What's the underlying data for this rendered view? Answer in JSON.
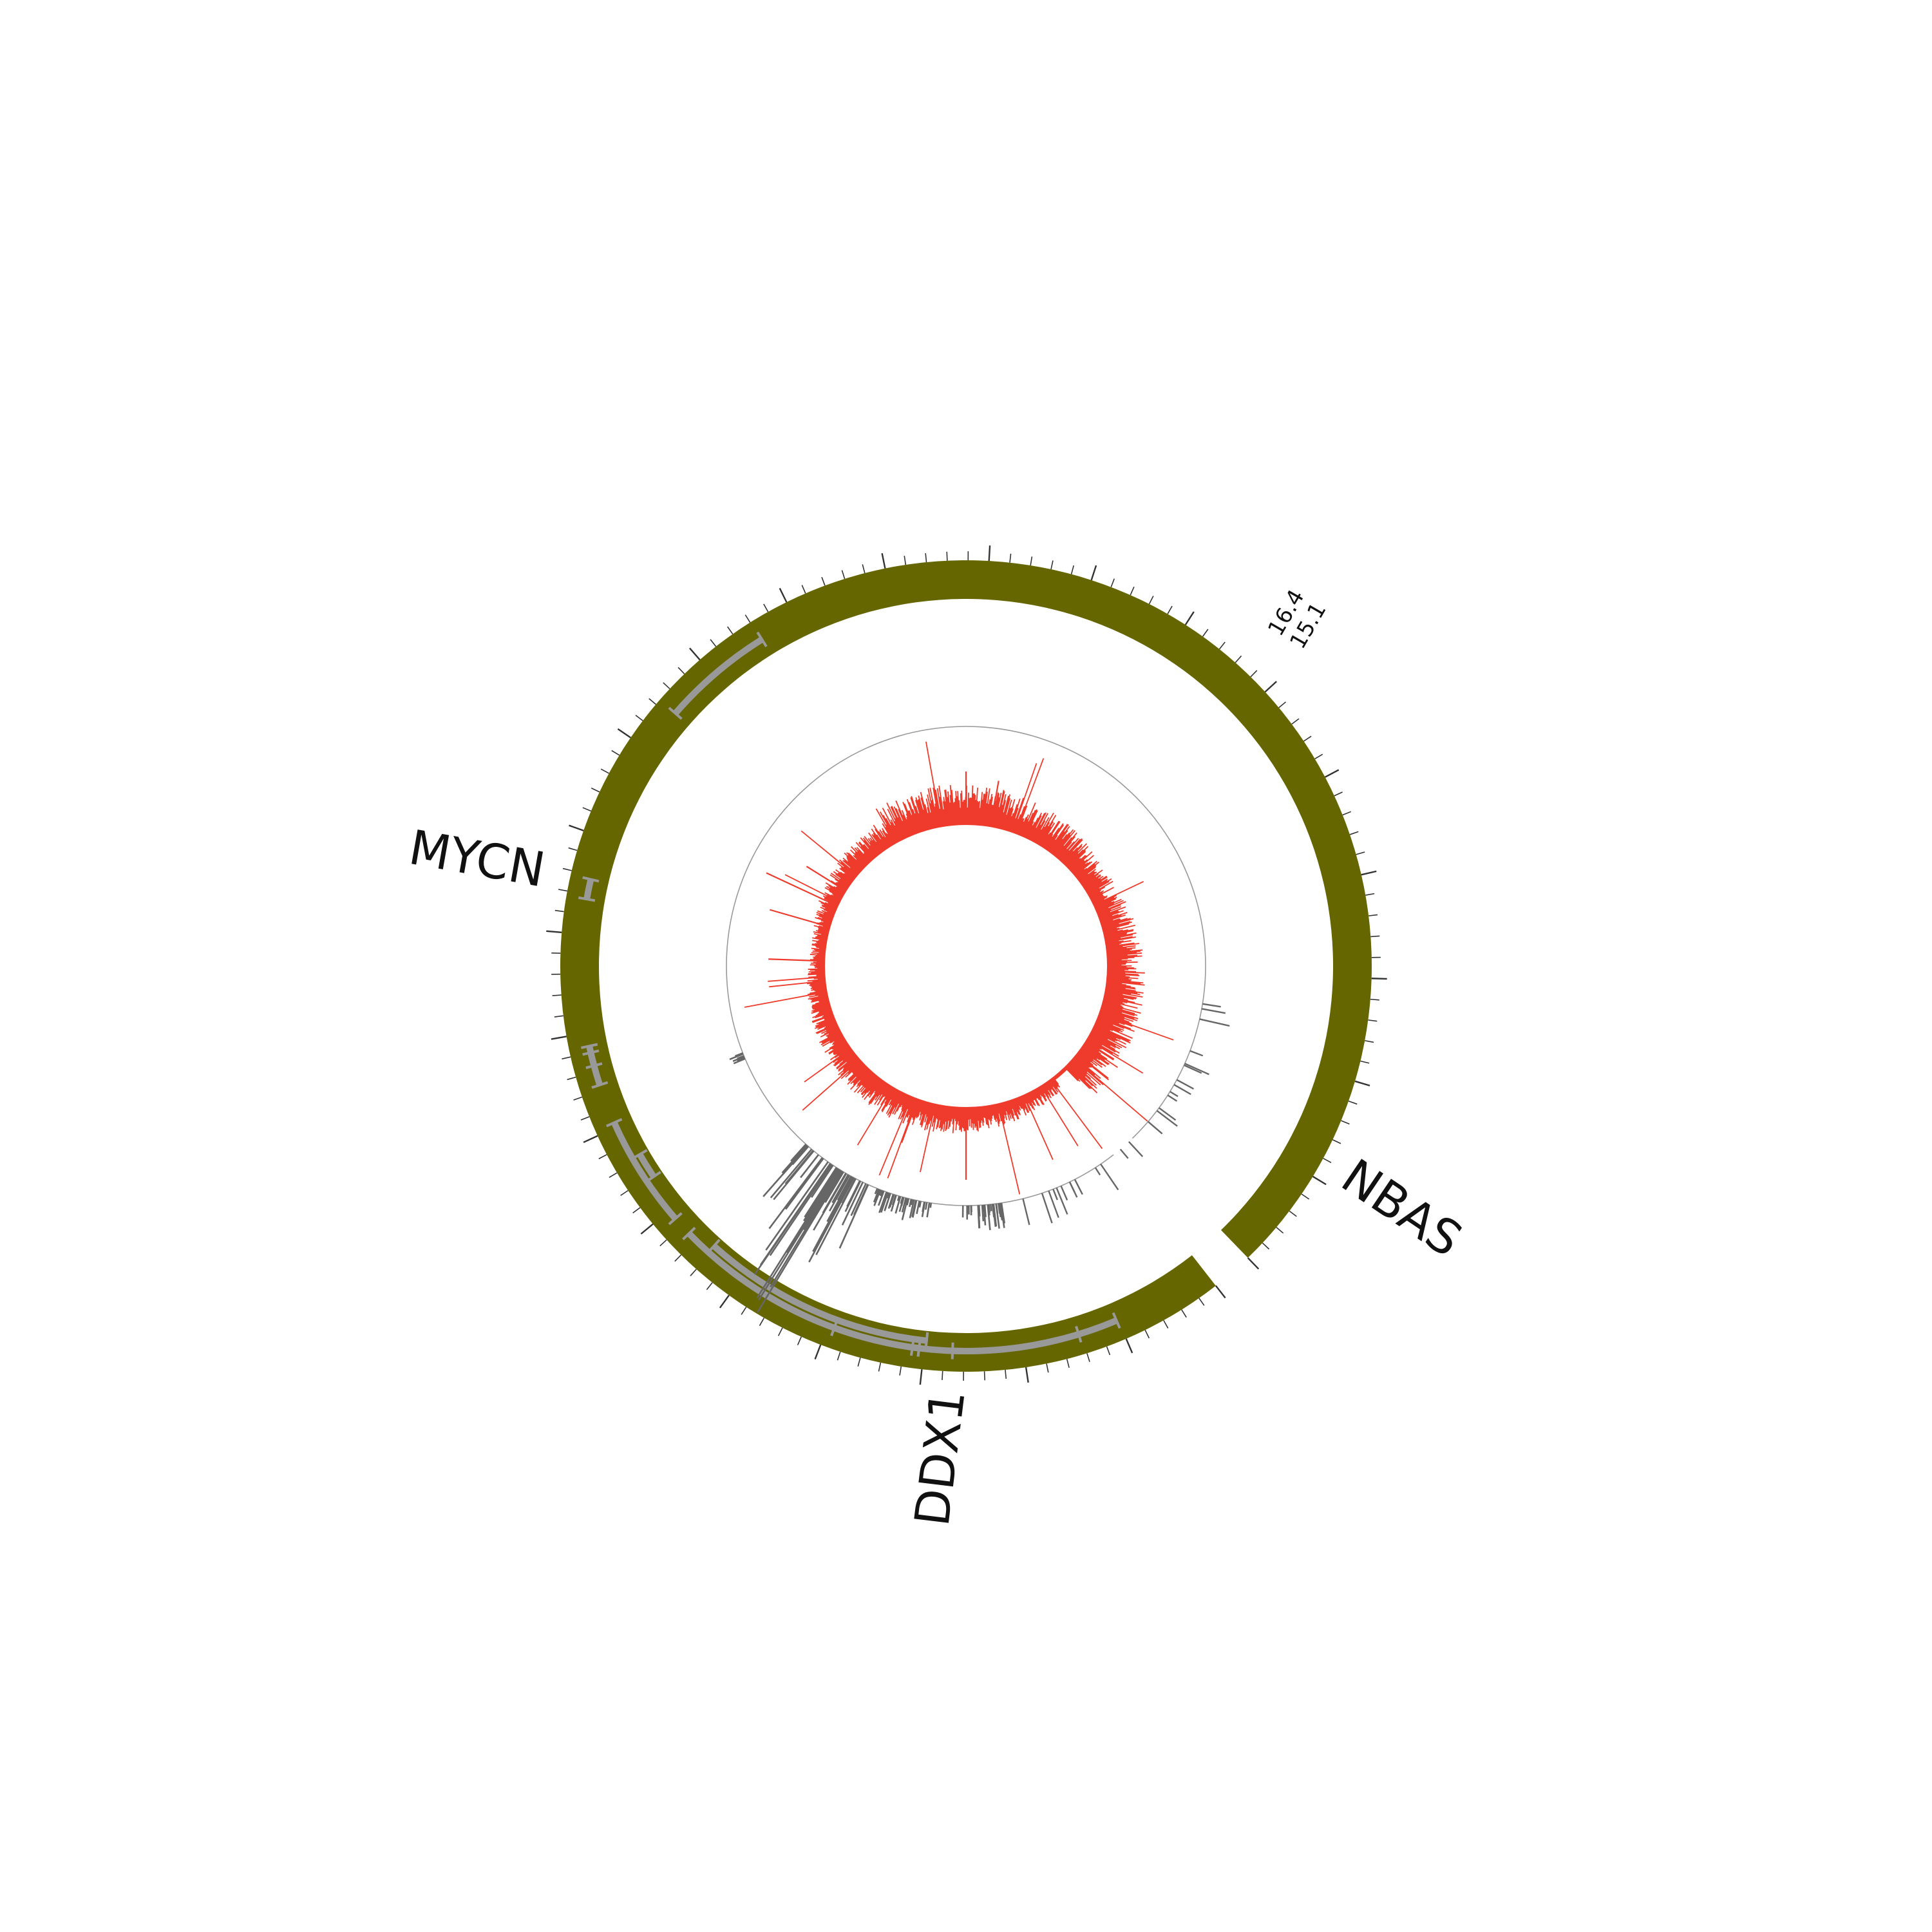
{
  "colors": {
    "background": "#ffffff",
    "ideogram": "#666600",
    "gene_track": "#999999",
    "coverage": "#ee3b2c",
    "breakpoint_track": "#666666",
    "ring_line": "#999999",
    "tick": "#333333",
    "label": "#111111"
  },
  "breakpoint_labels": {
    "end": "16.4",
    "start": "15.1"
  },
  "genes": [
    {
      "name": "NBAS",
      "label_shown": true
    },
    {
      "name": "DDX1",
      "label_shown": true
    },
    {
      "name": "MYCN",
      "label_shown": true
    }
  ],
  "chart_data": {
    "type": "circos",
    "segments": [
      {
        "start_label": "15.1",
        "end_label": "16.4",
        "color": "#666600"
      }
    ],
    "tracks": [
      {
        "name": "genes",
        "type": "arcs",
        "color": "#999999"
      },
      {
        "name": "breakpoints",
        "type": "bars",
        "color": "#666666"
      },
      {
        "name": "coverage",
        "type": "histogram",
        "color": "#ee3b2c"
      }
    ],
    "gene_labels": [
      "NBAS",
      "DDX1",
      "MYCN"
    ],
    "grid": false,
    "legend": "none"
  }
}
